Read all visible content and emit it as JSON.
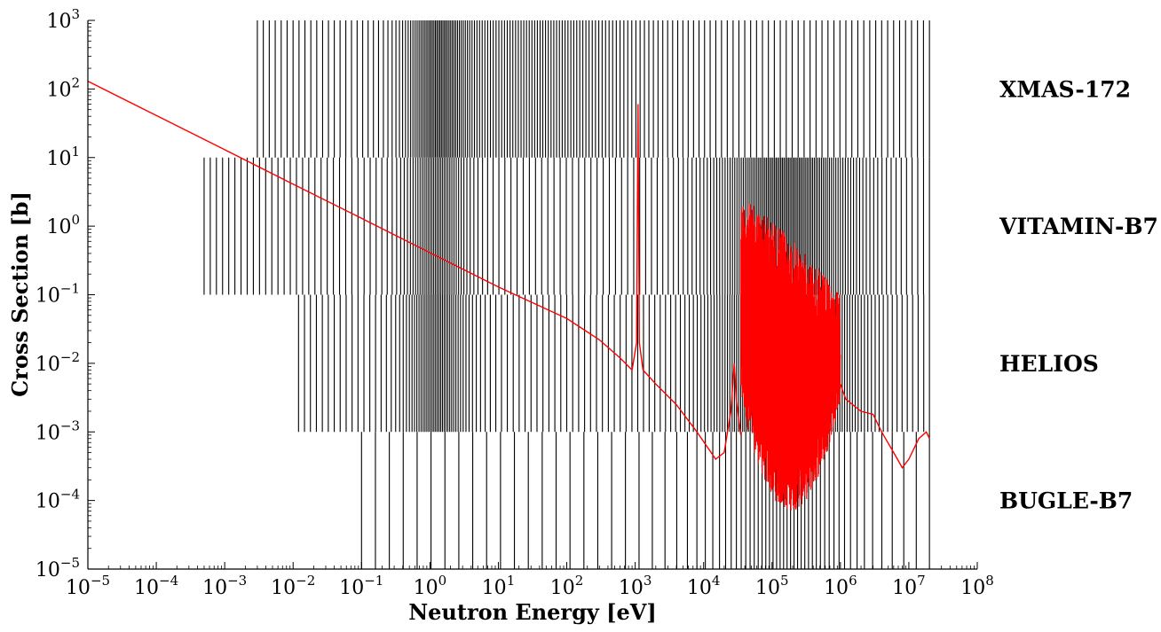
{
  "chart_data": {
    "type": "line",
    "title": "",
    "xlabel": "Neutron Energy [eV]",
    "ylabel": "Cross Section [b]",
    "xscale": "log",
    "yscale": "log",
    "xlim": [
      1e-05,
      100000000.0
    ],
    "ylim": [
      1e-05,
      1000.0
    ],
    "grid": false,
    "x_tick_labels": [
      {
        "base": "10",
        "exp": "−5"
      },
      {
        "base": "10",
        "exp": "−4"
      },
      {
        "base": "10",
        "exp": "−3"
      },
      {
        "base": "10",
        "exp": "−2"
      },
      {
        "base": "10",
        "exp": "−1"
      },
      {
        "base": "10",
        "exp": "0"
      },
      {
        "base": "10",
        "exp": "1"
      },
      {
        "base": "10",
        "exp": "2"
      },
      {
        "base": "10",
        "exp": "3"
      },
      {
        "base": "10",
        "exp": "4"
      },
      {
        "base": "10",
        "exp": "5"
      },
      {
        "base": "10",
        "exp": "6"
      },
      {
        "base": "10",
        "exp": "7"
      },
      {
        "base": "10",
        "exp": "8"
      }
    ],
    "y_tick_labels": [
      {
        "base": "10",
        "exp": "−5"
      },
      {
        "base": "10",
        "exp": "−4"
      },
      {
        "base": "10",
        "exp": "−3"
      },
      {
        "base": "10",
        "exp": "−2"
      },
      {
        "base": "10",
        "exp": "−1"
      },
      {
        "base": "10",
        "exp": "0"
      },
      {
        "base": "10",
        "exp": "1"
      },
      {
        "base": "10",
        "exp": "2"
      },
      {
        "base": "10",
        "exp": "3"
      }
    ],
    "group_structures": [
      {
        "name": "XMAS-172",
        "y_range": [
          10,
          1000
        ],
        "n_groups": 172,
        "e_min": 0.003,
        "e_max": 20000000.0
      },
      {
        "name": "VITAMIN-B7",
        "y_range": [
          0.1,
          10
        ],
        "n_groups": 199,
        "e_min": 0.0005,
        "e_max": 20000000.0
      },
      {
        "name": "HELIOS",
        "y_range": [
          0.001,
          0.1
        ],
        "n_groups": 190,
        "e_min": 0.012,
        "e_max": 20000000.0
      },
      {
        "name": "BUGLE-B7",
        "y_range": [
          1e-05,
          0.001
        ],
        "n_groups": 67,
        "e_min": 0.1,
        "e_max": 20000000.0
      }
    ],
    "series": [
      {
        "color": "#ff0000",
        "points": [
          [
            1e-05,
            130
          ],
          [
            0.0001,
            41
          ],
          [
            0.001,
            13
          ],
          [
            0.01,
            4.1
          ],
          [
            0.1,
            1.3
          ],
          [
            1,
            0.41
          ],
          [
            10,
            0.13
          ],
          [
            100,
            0.045
          ],
          [
            300,
            0.022
          ],
          [
            600,
            0.012
          ],
          [
            900,
            0.008
          ],
          [
            1050,
            0.02
          ],
          [
            1100,
            60
          ],
          [
            1150,
            0.02
          ],
          [
            1300,
            0.008
          ],
          [
            2000,
            0.005
          ],
          [
            4000,
            0.0025
          ],
          [
            8000,
            0.001
          ],
          [
            15000,
            0.0004
          ],
          [
            20000,
            0.0005
          ],
          [
            25000,
            0.002
          ],
          [
            28000,
            0.01
          ],
          [
            30000,
            0.003
          ],
          [
            35000,
            0.0009
          ],
          [
            1000000.0,
            0.005
          ],
          [
            1200000.0,
            0.003
          ],
          [
            2000000.0,
            0.002
          ],
          [
            3000000.0,
            0.0018
          ],
          [
            4000000.0,
            0.001
          ],
          [
            6000000.0,
            0.0005
          ],
          [
            8000000.0,
            0.0003
          ],
          [
            10000000.0,
            0.0004
          ],
          [
            14000000.0,
            0.0008
          ],
          [
            18000000.0,
            0.001
          ],
          [
            20000000.0,
            0.0008
          ]
        ],
        "resonance_region": {
          "e_min": 35000,
          "e_max": 1000000.0,
          "y_low": 7e-05,
          "y_high": 2.5
        }
      }
    ],
    "colors": {
      "line": "#ff0000",
      "group_lines": "#000000",
      "axes": "#000000"
    }
  }
}
